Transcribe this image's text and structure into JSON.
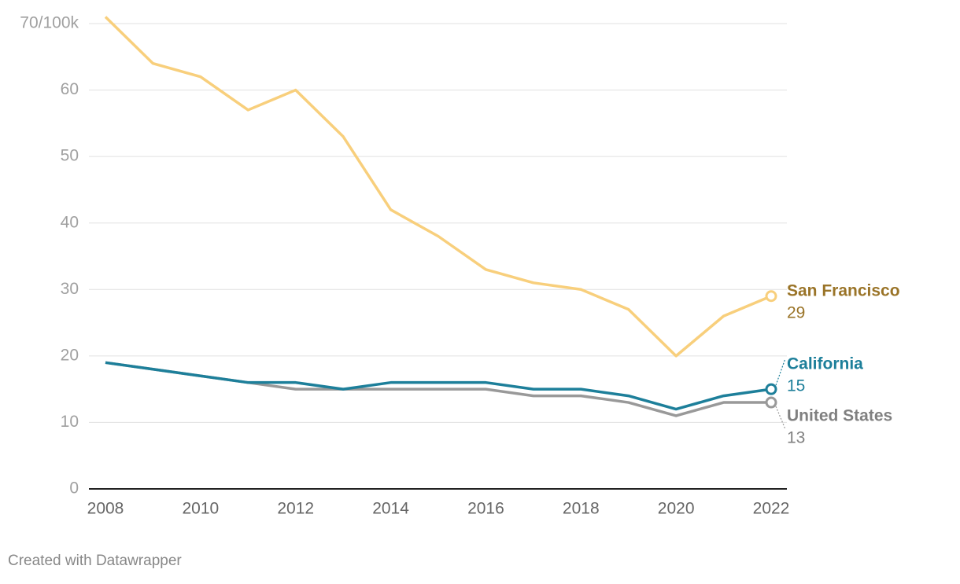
{
  "chart_data": {
    "type": "line",
    "x": [
      2008,
      2009,
      2010,
      2011,
      2012,
      2013,
      2014,
      2015,
      2016,
      2017,
      2018,
      2019,
      2020,
      2021,
      2022
    ],
    "series": [
      {
        "name": "San Francisco",
        "color": "#f8cf7c",
        "label_color": "#9a7428",
        "values": [
          71,
          64,
          62,
          57,
          60,
          53,
          42,
          38,
          33,
          31,
          30,
          27,
          20,
          26,
          29
        ]
      },
      {
        "name": "California",
        "color": "#1d7f9a",
        "label_color": "#1d7f9a",
        "values": [
          19,
          18,
          17,
          16,
          16,
          15,
          16,
          16,
          16,
          15,
          15,
          14,
          12,
          14,
          15
        ]
      },
      {
        "name": "United States",
        "color": "#999999",
        "label_color": "#808080",
        "values": [
          19,
          18,
          17,
          16,
          15,
          15,
          15,
          15,
          15,
          14,
          14,
          13,
          11,
          13,
          13
        ]
      }
    ],
    "xlim": [
      2008,
      2022
    ],
    "xticks": [
      2008,
      2010,
      2012,
      2014,
      2016,
      2018,
      2020,
      2022
    ],
    "ylim": [
      0,
      70
    ],
    "yticks": [
      0,
      10,
      20,
      30,
      40,
      50,
      60,
      {
        "value": 70,
        "label": "70/100k"
      }
    ],
    "grid": true,
    "footer": "Created with Datawrapper"
  }
}
